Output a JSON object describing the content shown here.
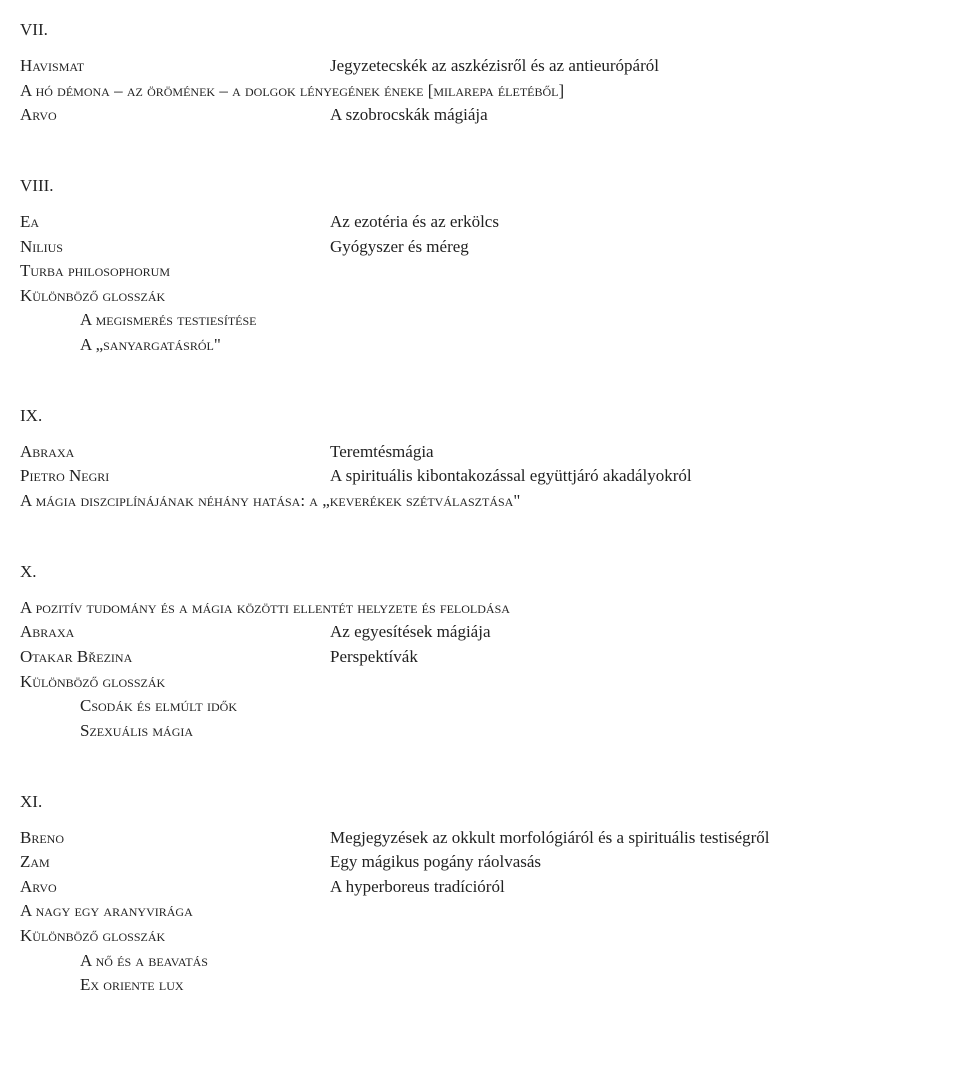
{
  "sections": {
    "vii": {
      "heading": "VII.",
      "rows": [
        {
          "left": "Havismat",
          "right": "Jegyzetecskék az aszkézisről és az antieurópáról"
        },
        {
          "full_sc": "A hó démona – az örömének – a dolgok lényegének éneke [milarepa életéből]"
        },
        {
          "left": "Arvo",
          "right": "A szobrocskák mágiája"
        }
      ]
    },
    "viii": {
      "heading": "VIII.",
      "rows": [
        {
          "left": "Ea",
          "right": "Az ezotéria és az erkölcs"
        },
        {
          "left": "Nilius",
          "right": "Gyógyszer és méreg"
        },
        {
          "full_sc": "Turba philosophorum"
        },
        {
          "full_sc": "Különböző glosszák"
        },
        {
          "full_sc_indent": "A megismerés testiesítése"
        },
        {
          "full_sc_indent": "A „sanyargatásról\""
        }
      ]
    },
    "ix": {
      "heading": "IX.",
      "rows": [
        {
          "left": "Abraxa",
          "right": "Teremtésmágia"
        },
        {
          "left": "Pietro Negri",
          "right": "A spirituális kibontakozással együttjáró akadályokról"
        },
        {
          "full_sc": "A mágia diszciplínájának néhány hatása: a „keverékek szétválasztása\""
        }
      ]
    },
    "x": {
      "heading": "X.",
      "rows": [
        {
          "full_sc": "A pozitív tudomány és a mágia közötti ellentét helyzete és feloldása"
        },
        {
          "left": "Abraxa",
          "right": "Az egyesítések mágiája"
        },
        {
          "left": "Otakar Březina",
          "right": "Perspektívák"
        },
        {
          "full_sc": "Különböző glosszák"
        },
        {
          "full_sc_indent": "Csodák és elmúlt idők"
        },
        {
          "full_sc_indent": "Szexuális mágia"
        }
      ]
    },
    "xi": {
      "heading": "XI.",
      "rows": [
        {
          "left": "Breno",
          "right": "Megjegyzések az okkult morfológiáról és a spirituális testiségről"
        },
        {
          "left": "Zam",
          "right": "Egy mágikus pogány ráolvasás"
        },
        {
          "left": "Arvo",
          "right": "A hyperboreus tradícióról"
        },
        {
          "full_sc": "A nagy egy aranyvirága"
        },
        {
          "full_sc": "Különböző glosszák"
        },
        {
          "full_sc_indent": "A nő és a beavatás"
        },
        {
          "full_sc_indent": "Ex oriente lux"
        }
      ]
    }
  },
  "section_order": [
    "vii",
    "viii",
    "ix",
    "x",
    "xi"
  ]
}
